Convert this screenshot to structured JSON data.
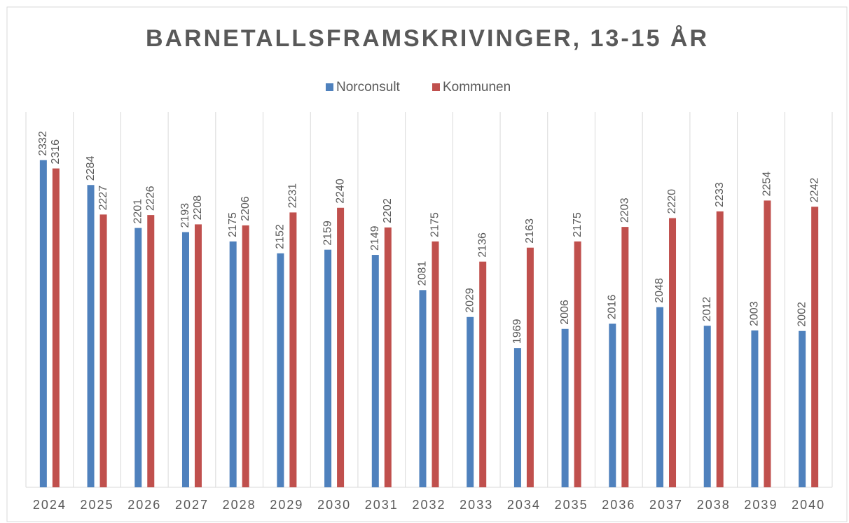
{
  "chart_data": {
    "type": "bar",
    "title": "BARNETALLSFRAMSKRIVINGER, 13-15 ÅR",
    "categories": [
      "2024",
      "2025",
      "2026",
      "2027",
      "2028",
      "2029",
      "2030",
      "2031",
      "2032",
      "2033",
      "2034",
      "2035",
      "2036",
      "2037",
      "2038",
      "2039",
      "2040"
    ],
    "series": [
      {
        "name": "Norconsult",
        "color": "#4f81bd",
        "values": [
          2332,
          2284,
          2201,
          2193,
          2175,
          2152,
          2159,
          2149,
          2081,
          2029,
          1969,
          2006,
          2016,
          2048,
          2012,
          2003,
          2002
        ]
      },
      {
        "name": "Kommunen",
        "color": "#c0504d",
        "values": [
          2316,
          2227,
          2226,
          2208,
          2206,
          2231,
          2240,
          2202,
          2175,
          2136,
          2163,
          2175,
          2203,
          2220,
          2233,
          2254,
          2242
        ]
      }
    ],
    "ylim": [
      1700,
      2425
    ],
    "legend": "top"
  }
}
